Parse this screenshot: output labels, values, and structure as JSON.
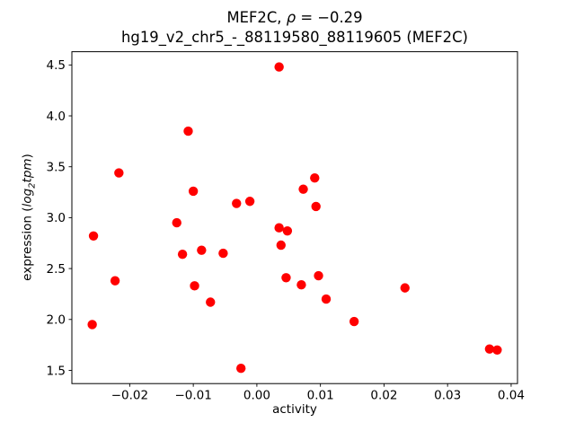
{
  "chart_data": {
    "type": "scatter",
    "title": "MEF2C, ρ = −0.29",
    "title_parts": {
      "prefix": "MEF2C, ",
      "rho": "ρ",
      "value": " = −0.29"
    },
    "subtitle": "hg19_v2_chr5_-_88119580_88119605 (MEF2C)",
    "xlabel": "activity",
    "ylabel": "expression (log2tpm)",
    "ylabel_parts": {
      "prefix": "expression (",
      "log": "log",
      "sub": "2",
      "tpm": "tpm",
      "suffix": ")"
    },
    "marker_color": "#ff0000",
    "axes_color": "#000000",
    "background_color": "#ffffff",
    "grid": false,
    "legend": false,
    "xlim": [
      -0.0291,
      0.041
    ],
    "ylim": [
      1.37,
      4.63
    ],
    "xtick_values": [
      -0.02,
      -0.01,
      0.0,
      0.01,
      0.02,
      0.03,
      0.04
    ],
    "xtick_labels": [
      "−0.02",
      "−0.01",
      "0.00",
      "0.01",
      "0.02",
      "0.03",
      "0.04"
    ],
    "ytick_values": [
      1.5,
      2.0,
      2.5,
      3.0,
      3.5,
      4.0,
      4.5
    ],
    "ytick_labels": [
      "1.5",
      "2.0",
      "2.5",
      "3.0",
      "3.5",
      "4.0",
      "4.5"
    ],
    "points": [
      [
        -0.0259,
        1.95
      ],
      [
        -0.0257,
        2.82
      ],
      [
        -0.0223,
        2.38
      ],
      [
        -0.0217,
        3.44
      ],
      [
        -0.0126,
        2.95
      ],
      [
        -0.0117,
        2.64
      ],
      [
        -0.0108,
        3.85
      ],
      [
        -0.01,
        3.26
      ],
      [
        -0.0098,
        2.33
      ],
      [
        -0.0087,
        2.68
      ],
      [
        -0.0073,
        2.17
      ],
      [
        -0.0053,
        2.65
      ],
      [
        -0.0032,
        3.14
      ],
      [
        -0.0025,
        1.52
      ],
      [
        -0.0011,
        3.16
      ],
      [
        0.0035,
        4.48
      ],
      [
        0.0035,
        2.9
      ],
      [
        0.0038,
        2.73
      ],
      [
        0.0046,
        2.41
      ],
      [
        0.0048,
        2.87
      ],
      [
        0.007,
        2.34
      ],
      [
        0.0073,
        3.28
      ],
      [
        0.0091,
        3.39
      ],
      [
        0.0093,
        3.11
      ],
      [
        0.0097,
        2.43
      ],
      [
        0.0109,
        2.2
      ],
      [
        0.0153,
        1.98
      ],
      [
        0.0233,
        2.31
      ],
      [
        0.0366,
        1.71
      ],
      [
        0.0378,
        1.7
      ]
    ]
  }
}
